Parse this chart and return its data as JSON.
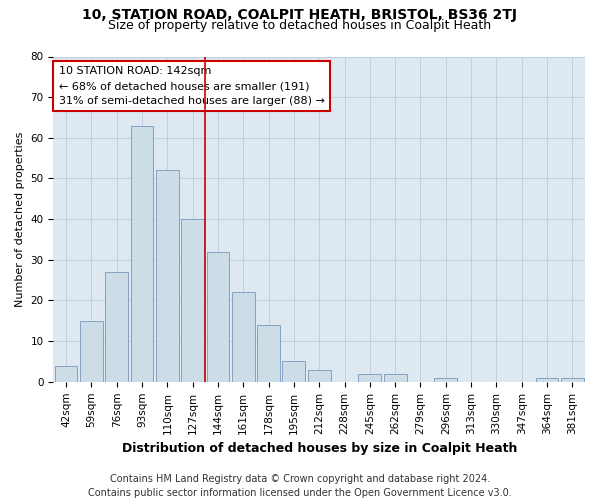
{
  "title1": "10, STATION ROAD, COALPIT HEATH, BRISTOL, BS36 2TJ",
  "title2": "Size of property relative to detached houses in Coalpit Heath",
  "xlabel": "Distribution of detached houses by size in Coalpit Heath",
  "ylabel": "Number of detached properties",
  "footnote1": "Contains HM Land Registry data © Crown copyright and database right 2024.",
  "footnote2": "Contains public sector information licensed under the Open Government Licence v3.0.",
  "bar_labels": [
    "42sqm",
    "59sqm",
    "76sqm",
    "93sqm",
    "110sqm",
    "127sqm",
    "144sqm",
    "161sqm",
    "178sqm",
    "195sqm",
    "212sqm",
    "228sqm",
    "245sqm",
    "262sqm",
    "279sqm",
    "296sqm",
    "313sqm",
    "330sqm",
    "347sqm",
    "364sqm",
    "381sqm"
  ],
  "bar_values": [
    4,
    15,
    27,
    63,
    52,
    40,
    32,
    22,
    14,
    5,
    3,
    0,
    2,
    2,
    0,
    1,
    0,
    0,
    0,
    1,
    1
  ],
  "bar_color": "#ccdde8",
  "bar_edgecolor": "#7799bb",
  "grid_color": "#bbccdd",
  "bg_color": "#dde8f0",
  "vline_x": 5.5,
  "vline_color": "#cc0000",
  "annotation_text": "10 STATION ROAD: 142sqm\n← 68% of detached houses are smaller (191)\n31% of semi-detached houses are larger (88) →",
  "annotation_box_facecolor": "#ffffff",
  "annotation_box_edgecolor": "#cc0000",
  "ylim": [
    0,
    80
  ],
  "yticks": [
    0,
    10,
    20,
    30,
    40,
    50,
    60,
    70,
    80
  ],
  "title1_fontsize": 10,
  "title2_fontsize": 9,
  "xlabel_fontsize": 9,
  "ylabel_fontsize": 8,
  "tick_fontsize": 7.5,
  "annot_fontsize": 8,
  "footnote_fontsize": 7
}
